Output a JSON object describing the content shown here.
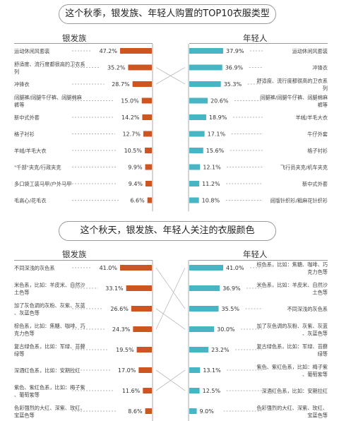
{
  "chart_data": [
    {
      "type": "bar",
      "title": "这个秋季，银发族、年轻人购置的TOP10衣服类型",
      "left_group": "银发族",
      "right_group": "年轻人",
      "left_color": "#cc5522",
      "right_color": "#47b5c4",
      "left": {
        "categories": [
          "运动休闲风套装",
          "舒适度、流行度都很高的卫衣系列",
          "冲锋衣",
          "阔腿裤/阔腿牛仔裤、阔腿棉麻裤等",
          "新中式外套",
          "格子衬衫",
          "羊绒/羊毛大衣",
          "\"千部\"夹克/行政夹克",
          "多口袋工装马甲/户外马甲",
          "毛高心/花毛衣"
        ],
        "values": [
          47.2,
          35.2,
          28.7,
          15.0,
          14.2,
          12.7,
          10.5,
          9.9,
          9.4,
          6.6
        ],
        "value_labels": [
          "47.2%",
          "35.2%",
          "28.7%",
          "15.0%",
          "14.2%",
          "12.7%",
          "10.5%",
          "9.9%",
          "9.4%",
          "6.6%"
        ]
      },
      "right": {
        "categories": [
          "运动休闲风套装",
          "冲锋衣",
          "舒适度、流行度都很高的卫衣系列",
          "阔腿裤/阔腿牛仔裤、阔腿棉麻裤等",
          "羊绒/羊毛大衣",
          "牛仔外套",
          "格子衬衫",
          "飞行员夹克/机车夹克",
          "新中式外套",
          "阔版针织衫/粗麻花针织衫"
        ],
        "values": [
          37.9,
          36.9,
          35.3,
          20.6,
          18.9,
          17.1,
          15.6,
          12.1,
          11.2,
          10.8
        ],
        "value_labels": [
          "37.9%",
          "36.9%",
          "35.3%",
          "20.6%",
          "18.9%",
          "17.1%",
          "15.6%",
          "12.1%",
          "11.2%",
          "10.8%"
        ]
      },
      "crossings": [
        [
          1,
          2
        ],
        [
          2,
          1
        ]
      ]
    },
    {
      "type": "bar",
      "title": "这个秋天，银发族、年轻人关注的衣服颜色",
      "left_group": "银发族",
      "right_group": "年轻人",
      "left_color": "#cc5522",
      "right_color": "#47b5c4",
      "left": {
        "categories": [
          "不同深浅的灰色系",
          "米色系，比如：羊皮米、自然沙土色等",
          "加了灰色调的灰粉、灰紫、灰蓝、灰蓝色等",
          "棕色系，比如：焦糖、咖啡、巧克力色等",
          "复古绿色系，比如：军绿、苔藓绿等",
          "深酒红色系，比如：安期拉红",
          "紫色、紫红色系，比如：梅子紫、葡萄紫等",
          "色彩强烈的大红、深紫、玫红、宝蓝色等"
        ],
        "values": [
          41.0,
          33.1,
          26.6,
          24.3,
          19.5,
          17.0,
          11.6,
          8.6
        ],
        "value_labels": [
          "41.0%",
          "33.1%",
          "26.6%",
          "24.3%",
          "19.5%",
          "17.0%",
          "11.6%",
          "8.6%"
        ]
      },
      "right": {
        "categories": [
          "棕色系，比如：焦糖、咖啡、巧克力色等",
          "米色系，比如：羊皮米、自然沙土色等",
          "不同深浅的灰色系",
          "加了灰色调的灰粉、灰紫、灰蓝、灰蓝色等",
          "复古绿色系，比如：军绿、苔藓绿等",
          "紫色、紫红色系，比如：梅子紫、葡萄紫等",
          "深酒红色系，比如：安期拉红",
          "色彩强烈的大红、深紫、玫红、宝蓝色等"
        ],
        "values": [
          41.0,
          36.9,
          35.5,
          30.0,
          23.2,
          13.1,
          12.5,
          9.0
        ],
        "value_labels": [
          "41.0%",
          "36.9%",
          "35.5%",
          "30.0%",
          "23.2%",
          "13.1%",
          "12.5%",
          "9.0%"
        ]
      },
      "crossings": [
        [
          0,
          2
        ],
        [
          2,
          3
        ],
        [
          3,
          0
        ],
        [
          5,
          6
        ],
        [
          6,
          5
        ]
      ]
    }
  ]
}
